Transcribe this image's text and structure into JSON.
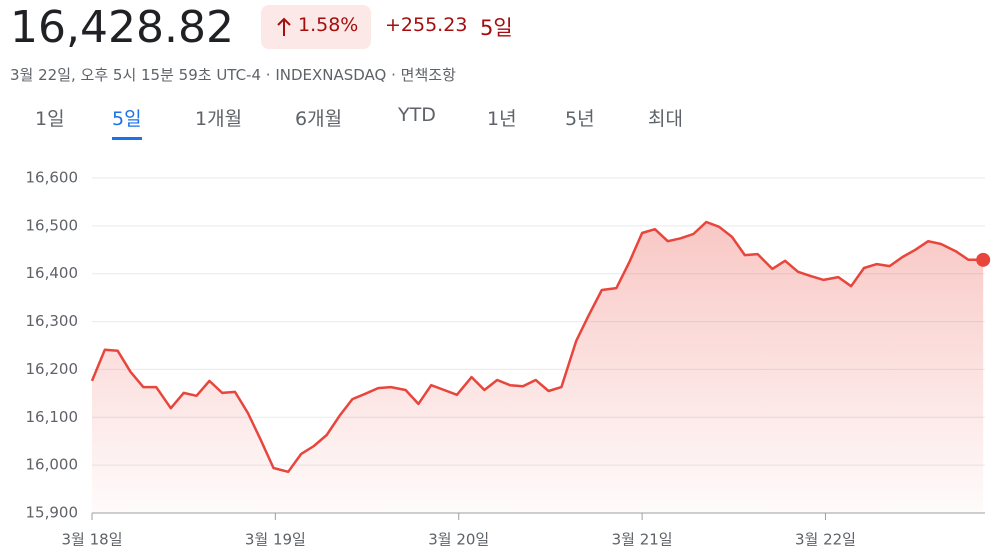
{
  "header": {
    "price": "16,428.82",
    "change_percent": "1.58%",
    "change": "+255.23",
    "period": "5일",
    "subtitle": "3월 22일, 오후 5시 15분 59초 UTC-4 · INDEXNASDAQ · 면책조항"
  },
  "tabs": {
    "items": [
      "1일",
      "5일",
      "1개월",
      "6개월",
      "YTD",
      "1년",
      "5년",
      "최대"
    ],
    "active": 1
  },
  "chart_data": {
    "type": "line",
    "color": "#e8453c",
    "grid": true,
    "x": [
      0,
      0.07,
      0.14,
      0.21,
      0.28,
      0.35,
      0.43,
      0.5,
      0.57,
      0.64,
      0.71,
      0.78,
      0.85,
      0.92,
      0.99,
      1.07,
      1.14,
      1.21,
      1.28,
      1.35,
      1.42,
      1.49,
      1.56,
      1.63,
      1.71,
      1.78,
      1.85,
      1.92,
      1.99,
      2.07,
      2.14,
      2.21,
      2.28,
      2.35,
      2.42,
      2.49,
      2.56,
      2.64,
      2.71,
      2.78,
      2.86,
      2.93,
      3.0,
      3.07,
      3.14,
      3.21,
      3.28,
      3.35,
      3.42,
      3.49,
      3.56,
      3.63,
      3.71,
      3.78,
      3.85,
      3.92,
      3.99,
      4.07,
      4.14,
      4.21,
      4.28,
      4.35,
      4.42,
      4.49,
      4.56,
      4.63,
      4.71,
      4.78,
      4.86
    ],
    "values": [
      16176,
      16241,
      16239,
      16195,
      16163,
      16163,
      16119,
      16151,
      16145,
      16176,
      16151,
      16153,
      16109,
      16053,
      15994,
      15986,
      16023,
      16040,
      16063,
      16103,
      16138,
      16149,
      16161,
      16163,
      16157,
      16128,
      16167,
      16157,
      16147,
      16184,
      16157,
      16178,
      16167,
      16165,
      16178,
      16155,
      16163,
      16259,
      16314,
      16366,
      16370,
      16424,
      16485,
      16493,
      16468,
      16474,
      16483,
      16508,
      16498,
      16477,
      16439,
      16441,
      16410,
      16427,
      16404,
      16395,
      16387,
      16393,
      16374,
      16412,
      16420,
      16416,
      16435,
      16450,
      16468,
      16462,
      16447,
      16429,
      16429
    ],
    "xlim": [
      0,
      4.87
    ],
    "xticks": [
      {
        "value": 0,
        "label": "3월 18일"
      },
      {
        "value": 1,
        "label": "3월 19일"
      },
      {
        "value": 2,
        "label": "3월 20일"
      },
      {
        "value": 3,
        "label": "3월 21일"
      },
      {
        "value": 4,
        "label": "3월 22일"
      }
    ],
    "ylim": [
      15900,
      16600
    ],
    "yticks": [
      {
        "value": 15900,
        "label": "15,900"
      },
      {
        "value": 16000,
        "label": "16,000"
      },
      {
        "value": 16100,
        "label": "16,100"
      },
      {
        "value": 16200,
        "label": "16,200"
      },
      {
        "value": 16300,
        "label": "16,300"
      },
      {
        "value": 16400,
        "label": "16,400"
      },
      {
        "value": 16500,
        "label": "16,500"
      },
      {
        "value": 16600,
        "label": "16,600"
      }
    ]
  }
}
